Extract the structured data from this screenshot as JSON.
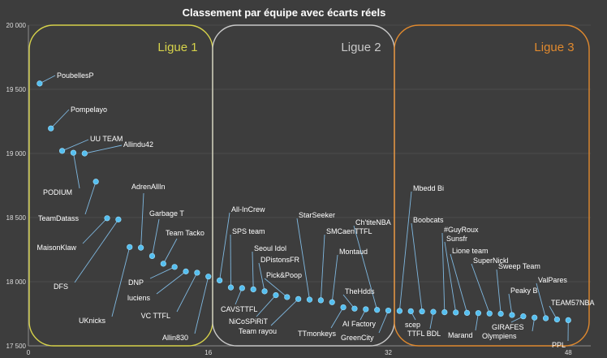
{
  "chart_data": {
    "type": "scatter",
    "title": "Classement par équipe avec écarts réels",
    "xlabel": "",
    "ylabel": "",
    "xlim": [
      0,
      50
    ],
    "ylim": [
      17500,
      20000
    ],
    "xticks": [
      0,
      16,
      32,
      48
    ],
    "yticks": [
      17500,
      18000,
      18500,
      19000,
      19500,
      20000
    ],
    "ytick_labels": [
      "17 500",
      "18 000",
      "18 500",
      "19 000",
      "19 500",
      "20 000"
    ],
    "grid": true,
    "colors": {
      "point": "#55bff0",
      "ligue1": "#d6d24a",
      "ligue2": "#c8c8c8",
      "ligue3": "#e0892e"
    },
    "leagues": [
      {
        "name": "Ligue 1",
        "color": "#d6d24a",
        "x_range": [
          0,
          16
        ]
      },
      {
        "name": "Ligue 2",
        "color": "#c8c8c8",
        "x_range": [
          16,
          32
        ]
      },
      {
        "name": "Ligue 3",
        "color": "#e0892e",
        "x_range": [
          32,
          48
        ]
      }
    ],
    "points": [
      {
        "x": 1,
        "y": 19545,
        "label": "PoubellesP"
      },
      {
        "x": 2,
        "y": 19195,
        "label": "Pompelayo"
      },
      {
        "x": 3,
        "y": 19020,
        "label": "UU TEAM"
      },
      {
        "x": 4,
        "y": 19005,
        "label": "PODIUM"
      },
      {
        "x": 5,
        "y": 19000,
        "label": "Allindu42"
      },
      {
        "x": 6,
        "y": 18780,
        "label": "TeamDatass"
      },
      {
        "x": 7,
        "y": 18495,
        "label": "MaisonKlaw"
      },
      {
        "x": 8,
        "y": 18485,
        "label": "DFS"
      },
      {
        "x": 9,
        "y": 18270,
        "label": "UKnicks"
      },
      {
        "x": 10,
        "y": 18265,
        "label": "AdrenAllIn"
      },
      {
        "x": 11,
        "y": 18200,
        "label": "Garbage T"
      },
      {
        "x": 12,
        "y": 18140,
        "label": "Team Tacko"
      },
      {
        "x": 13,
        "y": 18115,
        "label": "DNP"
      },
      {
        "x": 14,
        "y": 18080,
        "label": "luciens"
      },
      {
        "x": 15,
        "y": 18070,
        "label": "VC TTFL"
      },
      {
        "x": 16,
        "y": 18040,
        "label": "Allin830"
      },
      {
        "x": 17,
        "y": 18010,
        "label": "All-InCrew"
      },
      {
        "x": 18,
        "y": 17955,
        "label": "SPS team"
      },
      {
        "x": 19,
        "y": 17950,
        "label": "CAVSTTFL"
      },
      {
        "x": 20,
        "y": 17940,
        "label": "Seoul Idol"
      },
      {
        "x": 21,
        "y": 17925,
        "label": "DPistonsFR"
      },
      {
        "x": 22,
        "y": 17895,
        "label": "NiCoSPiRiT"
      },
      {
        "x": 23,
        "y": 17880,
        "label": "Pick&Poop"
      },
      {
        "x": 24,
        "y": 17865,
        "label": "Team rayou"
      },
      {
        "x": 25,
        "y": 17860,
        "label": "StarSeeker"
      },
      {
        "x": 26,
        "y": 17855,
        "label": "SMCaenTTFL"
      },
      {
        "x": 27,
        "y": 17840,
        "label": "Montaud"
      },
      {
        "x": 28,
        "y": 17800,
        "label": "TTmonkeys"
      },
      {
        "x": 29,
        "y": 17790,
        "label": "TheHdds"
      },
      {
        "x": 30,
        "y": 17785,
        "label": "AI Factory"
      },
      {
        "x": 31,
        "y": 17780,
        "label": "Ch'titeNBA"
      },
      {
        "x": 32,
        "y": 17775,
        "label": "GreenCity"
      },
      {
        "x": 33,
        "y": 17772,
        "label": "Mbedd Bi"
      },
      {
        "x": 34,
        "y": 17770,
        "label": "scep"
      },
      {
        "x": 35,
        "y": 17768,
        "label": "Boobcats"
      },
      {
        "x": 36,
        "y": 17765,
        "label": "TTFL BDL"
      },
      {
        "x": 37,
        "y": 17762,
        "label": "#GuyRoux"
      },
      {
        "x": 38,
        "y": 17760,
        "label": "Sunsfr"
      },
      {
        "x": 39,
        "y": 17757,
        "label": "Lione team"
      },
      {
        "x": 40,
        "y": 17755,
        "label": "Marand"
      },
      {
        "x": 41,
        "y": 17752,
        "label": "SuperNickl"
      },
      {
        "x": 42,
        "y": 17750,
        "label": "Sweep Team"
      },
      {
        "x": 43,
        "y": 17740,
        "label": "Peaky B"
      },
      {
        "x": 44,
        "y": 17730,
        "label": "GIRAFES"
      },
      {
        "x": 45,
        "y": 17720,
        "label": "Olympiens"
      },
      {
        "x": 46,
        "y": 17715,
        "label": "ValPares"
      },
      {
        "x": 47,
        "y": 17705,
        "label": "TEAM57NBA"
      },
      {
        "x": 48,
        "y": 17700,
        "label": "PPL"
      }
    ]
  }
}
